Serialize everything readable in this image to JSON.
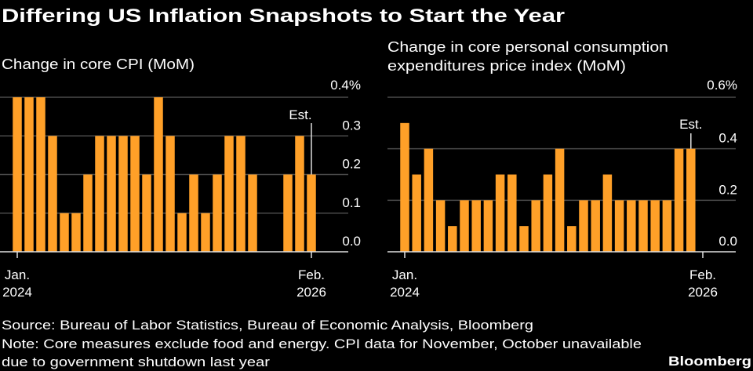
{
  "title": "Differing US Inflation Snapshots to Start the Year",
  "source": "Source: Bureau of Labor Statistics, Bureau of Economic Analysis, Bloomberg",
  "note_line1": "Note: Core measures exclude food and energy. CPI data for November, October unavailable",
  "note_line2": "due to government shutdown last year",
  "logo": "Bloomberg",
  "colors": {
    "bar": "#FFA028",
    "background": "#000000",
    "grid": "#4a4a4a",
    "axis": "#e0e0e0"
  },
  "chart_data": [
    {
      "type": "bar",
      "title": "Change in core CPI (MoM)",
      "x_start_label": [
        "Jan.",
        "2024"
      ],
      "x_end_label": [
        "Feb.",
        "2026"
      ],
      "categories": [
        "2024-01",
        "2024-02",
        "2024-03",
        "2024-04",
        "2024-05",
        "2024-06",
        "2024-07",
        "2024-08",
        "2024-09",
        "2024-10",
        "2024-11",
        "2024-12",
        "2025-01",
        "2025-02",
        "2025-03",
        "2025-04",
        "2025-05",
        "2025-06",
        "2025-07",
        "2025-08",
        "2025-09",
        "2025-10",
        "2025-11",
        "2025-12",
        "2026-01",
        "2026-02"
      ],
      "values": [
        0.4,
        0.4,
        0.4,
        0.3,
        0.1,
        0.1,
        0.2,
        0.3,
        0.3,
        0.3,
        0.3,
        0.2,
        0.4,
        0.3,
        0.1,
        0.2,
        0.1,
        0.2,
        0.3,
        0.3,
        0.2,
        null,
        null,
        0.2,
        0.3,
        0.2
      ],
      "ylim": [
        0,
        0.4
      ],
      "yticks": [
        "0.0",
        "0.1",
        "0.2",
        "0.3",
        "0.4%"
      ],
      "grid": true,
      "annotation": {
        "text": "Est.",
        "category": "2026-02"
      }
    },
    {
      "type": "bar",
      "title_line1": "Change in core personal consumption",
      "title_line2": "expenditures price index (MoM)",
      "x_start_label": [
        "Jan.",
        "2024"
      ],
      "x_end_label": [
        "Feb.",
        "2026"
      ],
      "categories": [
        "2024-01",
        "2024-02",
        "2024-03",
        "2024-04",
        "2024-05",
        "2024-06",
        "2024-07",
        "2024-08",
        "2024-09",
        "2024-10",
        "2024-11",
        "2024-12",
        "2025-01",
        "2025-02",
        "2025-03",
        "2025-04",
        "2025-05",
        "2025-06",
        "2025-07",
        "2025-08",
        "2025-09",
        "2025-10",
        "2025-11",
        "2025-12",
        "2026-01",
        "2026-02"
      ],
      "values": [
        0.5,
        0.3,
        0.4,
        0.2,
        0.1,
        0.2,
        0.2,
        0.2,
        0.3,
        0.3,
        0.1,
        0.2,
        0.3,
        0.4,
        0.1,
        0.2,
        0.2,
        0.3,
        0.2,
        0.2,
        0.2,
        0.2,
        0.2,
        0.4,
        0.4,
        null
      ],
      "ylim": [
        0,
        0.6
      ],
      "yticks": [
        "0.0",
        "0.2",
        "0.4",
        "0.6%"
      ],
      "grid": true,
      "annotation": {
        "text": "Est.",
        "category": "2026-01"
      }
    }
  ]
}
